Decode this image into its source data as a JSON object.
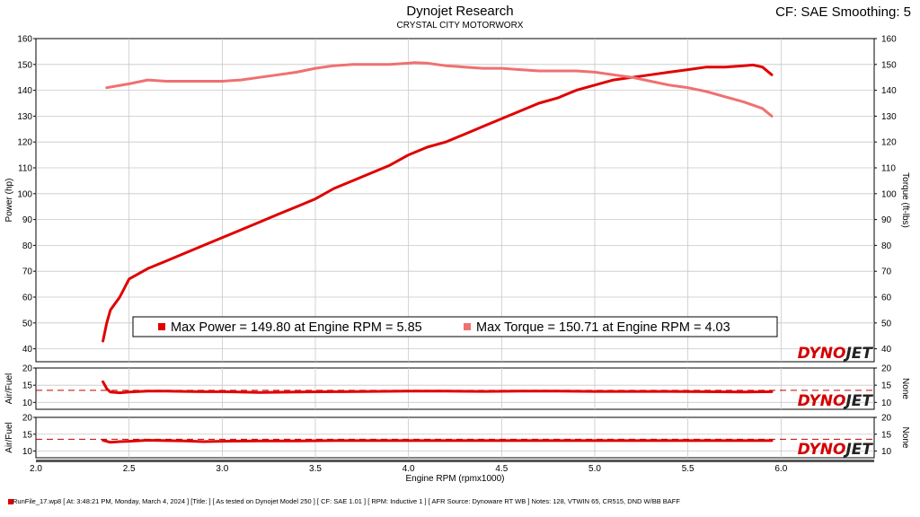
{
  "header": {
    "title": "Dynojet Research",
    "subtitle": "CRYSTAL CITY MOTORWORX",
    "cf": "CF: SAE Smoothing: 5"
  },
  "colors": {
    "power": "#e00000",
    "torque": "#f07070",
    "afr": "#e00000",
    "grid": "#c8c8c8",
    "logo_red": "#d40000",
    "logo_dark": "#222222"
  },
  "icons": [
    "dynojet-logo",
    "file-icon"
  ],
  "footer": {
    "text": "RunFile_17.wp8 [ At: 3:48:21 PM, Monday, March 4, 2024 ] [Title: ] [ As tested on Dynojet Model 250 ] [ CF: SAE 1.01 ] [ RPM: Inductive 1 ] [ AFR Source: Dynoware RT WB ] Notes: 128, VTWIN 65, CR515, DND W/BB BAFF"
  },
  "chart_data": [
    {
      "type": "line",
      "title": "",
      "xlabel": "Engine RPM (rpmx1000)",
      "ylabel": "Power (hp)",
      "ylabel_right": "Torque (ft-lbs)",
      "xlim": [
        2.0,
        6.5
      ],
      "ylim": [
        35,
        160
      ],
      "ylim_right": [
        35,
        160
      ],
      "x_ticks": [
        "2.0",
        "2.5",
        "3.0",
        "3.5",
        "4.0",
        "4.5",
        "5.0",
        "5.5",
        "6.0"
      ],
      "y_ticks": [
        "40",
        "50",
        "60",
        "70",
        "80",
        "90",
        "100",
        "110",
        "120",
        "130",
        "140",
        "150",
        "160"
      ],
      "y_ticks_right": [
        "40",
        "50",
        "60",
        "70",
        "80",
        "90",
        "100",
        "110",
        "120",
        "130",
        "140",
        "150",
        "160"
      ],
      "grid": true,
      "legend_position": "bottom-center",
      "series": [
        {
          "name": "Max Power = 149.80 at Engine RPM = 5.85",
          "x": [
            2.36,
            2.38,
            2.4,
            2.45,
            2.5,
            2.6,
            2.7,
            2.8,
            2.9,
            3.0,
            3.1,
            3.2,
            3.3,
            3.4,
            3.5,
            3.6,
            3.7,
            3.8,
            3.9,
            4.0,
            4.1,
            4.2,
            4.3,
            4.4,
            4.5,
            4.6,
            4.7,
            4.8,
            4.9,
            5.0,
            5.1,
            5.2,
            5.3,
            5.4,
            5.5,
            5.6,
            5.7,
            5.8,
            5.85,
            5.9,
            5.95
          ],
          "values": [
            43,
            50,
            55,
            60,
            67,
            71,
            74,
            77,
            80,
            83,
            86,
            89,
            92,
            95,
            98,
            102,
            105,
            108,
            111,
            115,
            118,
            120,
            123,
            126,
            129,
            132,
            135,
            137,
            140,
            142,
            144,
            145,
            146,
            147,
            148,
            149,
            149,
            149.5,
            149.8,
            149,
            146
          ]
        },
        {
          "name": "Max Torque = 150.71 at Engine RPM = 4.03",
          "x": [
            2.38,
            2.5,
            2.6,
            2.7,
            2.8,
            2.9,
            3.0,
            3.1,
            3.2,
            3.3,
            3.4,
            3.5,
            3.6,
            3.7,
            3.8,
            3.9,
            4.0,
            4.03,
            4.1,
            4.2,
            4.3,
            4.4,
            4.5,
            4.6,
            4.7,
            4.8,
            4.9,
            5.0,
            5.1,
            5.2,
            5.3,
            5.4,
            5.5,
            5.6,
            5.7,
            5.8,
            5.9,
            5.95
          ],
          "values": [
            141,
            142.5,
            144,
            143.5,
            143.5,
            143.5,
            143.5,
            144,
            145,
            146,
            147,
            148.5,
            149.5,
            150,
            150,
            150,
            150.5,
            150.71,
            150.5,
            149.5,
            149,
            148.5,
            148.5,
            148,
            147.5,
            147.5,
            147.5,
            147,
            146,
            145,
            143.5,
            142,
            141,
            139.5,
            137.5,
            135.5,
            133,
            130
          ]
        }
      ]
    },
    {
      "type": "line",
      "ylabel": "Air/Fuel",
      "ylabel_right": "None",
      "xlim": [
        2.0,
        6.5
      ],
      "ylim": [
        8,
        20
      ],
      "y_ticks": [
        "10",
        "15",
        "20"
      ],
      "reference_line": 13.5,
      "grid": true,
      "series": [
        {
          "x": [
            2.36,
            2.38,
            2.4,
            2.45,
            2.5,
            2.6,
            2.7,
            2.8,
            2.9,
            3.0,
            3.2,
            3.4,
            3.6,
            3.8,
            4.0,
            4.2,
            4.4,
            4.6,
            4.8,
            5.0,
            5.2,
            5.4,
            5.6,
            5.8,
            5.95
          ],
          "values": [
            16,
            14,
            13,
            12.8,
            13,
            13.3,
            13.3,
            13.2,
            13.1,
            13.1,
            12.9,
            13,
            13.1,
            13.2,
            13.3,
            13.3,
            13.2,
            13.3,
            13.3,
            13.2,
            13.2,
            13.2,
            13.1,
            13,
            13.1
          ]
        }
      ]
    },
    {
      "type": "line",
      "ylabel": "Air/Fuel",
      "ylabel_right": "None",
      "xlim": [
        2.0,
        6.5
      ],
      "ylim": [
        8,
        20
      ],
      "y_ticks": [
        "10",
        "15",
        "20"
      ],
      "reference_line": 13.5,
      "grid": true,
      "series": [
        {
          "x": [
            2.36,
            2.4,
            2.45,
            2.5,
            2.6,
            2.7,
            2.8,
            2.9,
            3.0,
            3.2,
            3.4,
            3.6,
            3.8,
            4.0,
            4.2,
            4.4,
            4.6,
            4.8,
            5.0,
            5.2,
            5.4,
            5.6,
            5.8,
            5.95
          ],
          "values": [
            13.2,
            12.6,
            12.8,
            12.9,
            13.2,
            13.1,
            13,
            12.8,
            12.9,
            13,
            13,
            13.1,
            13.1,
            13.1,
            13.1,
            13.1,
            13.1,
            13.1,
            13.1,
            13.1,
            13.1,
            13.1,
            13.1,
            13.1
          ]
        }
      ]
    }
  ]
}
